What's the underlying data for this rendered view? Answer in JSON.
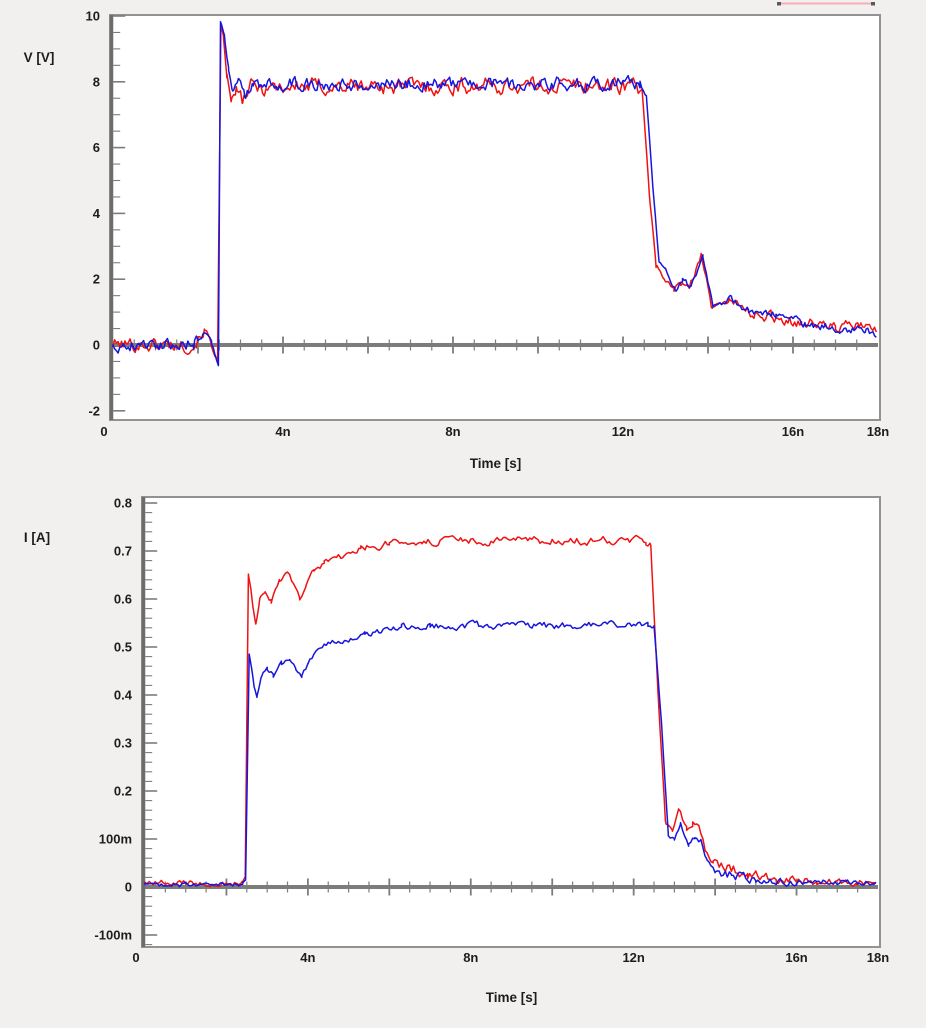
{
  "ui": {
    "background_color": "#f1f0ee",
    "plot_background": "#ffffff",
    "frame_color": "#929292",
    "axis_color": "#6c6c6c",
    "clipped_marker": {
      "color": "#f7aeb4",
      "endpoint_color": "#5a5a5a"
    }
  },
  "chart_data": [
    {
      "type": "line",
      "title": "",
      "xlabel": "Time [s]",
      "ylabel": "V [V]",
      "x_range_ns": [
        0,
        18
      ],
      "ylim": [
        -2,
        10
      ],
      "grid": false,
      "legend": "none",
      "x_ticks": [
        "0",
        "4n",
        "8n",
        "12n",
        "16n",
        "18n"
      ],
      "x_tick_values_ns": [
        0,
        4,
        8,
        12,
        16,
        18
      ],
      "y_ticks": [
        "10",
        "8",
        "6",
        "4",
        "2",
        "0",
        "-2"
      ],
      "y_tick_values": [
        10,
        8,
        6,
        4,
        2,
        0,
        -2
      ],
      "series": [
        {
          "name": "red",
          "color": "#f01212",
          "keypoints_t_v_noise": [
            [
              0,
              0.02,
              0.2
            ],
            [
              1.9,
              0.0,
              0.2
            ],
            [
              2.15,
              0.45,
              0.15
            ],
            [
              2.3,
              0.1,
              0.1
            ],
            [
              2.4,
              -0.3,
              0.05
            ],
            [
              2.46,
              -0.5,
              0.02
            ],
            [
              2.54,
              9.7,
              0.04
            ],
            [
              2.6,
              9.3,
              0.06
            ],
            [
              2.68,
              8.2,
              0.1
            ],
            [
              2.78,
              7.35,
              0.12
            ],
            [
              2.9,
              7.75,
              0.18
            ],
            [
              3.05,
              7.4,
              0.2
            ],
            [
              3.25,
              7.85,
              0.24
            ],
            [
              12.35,
              7.9,
              0.24
            ],
            [
              12.45,
              7.8,
              0.08
            ],
            [
              12.62,
              4.5,
              0.08
            ],
            [
              12.78,
              2.45,
              0.1
            ],
            [
              12.95,
              2.1,
              0.12
            ],
            [
              13.2,
              1.65,
              0.12
            ],
            [
              13.35,
              1.9,
              0.12
            ],
            [
              13.55,
              1.7,
              0.1
            ],
            [
              13.85,
              2.8,
              0.1
            ],
            [
              14.1,
              1.05,
              0.12
            ],
            [
              14.5,
              1.45,
              0.15
            ],
            [
              14.9,
              1.0,
              0.16
            ],
            [
              15.5,
              0.85,
              0.16
            ],
            [
              16.2,
              0.7,
              0.16
            ],
            [
              17.0,
              0.55,
              0.16
            ],
            [
              17.6,
              0.6,
              0.14
            ],
            [
              18,
              0.4,
              0.12
            ]
          ]
        },
        {
          "name": "blue",
          "color": "#1616dc",
          "keypoints_t_v_noise": [
            [
              0,
              0.0,
              0.18
            ],
            [
              1.9,
              0.05,
              0.18
            ],
            [
              2.15,
              0.4,
              0.12
            ],
            [
              2.32,
              0.05,
              0.08
            ],
            [
              2.42,
              -0.35,
              0.04
            ],
            [
              2.48,
              -0.6,
              0.02
            ],
            [
              2.53,
              9.85,
              0.03
            ],
            [
              2.62,
              9.4,
              0.05
            ],
            [
              2.72,
              8.4,
              0.08
            ],
            [
              2.82,
              7.7,
              0.1
            ],
            [
              2.95,
              8.0,
              0.16
            ],
            [
              3.1,
              7.6,
              0.18
            ],
            [
              3.3,
              7.95,
              0.2
            ],
            [
              12.4,
              7.95,
              0.2
            ],
            [
              12.55,
              7.6,
              0.06
            ],
            [
              12.7,
              4.8,
              0.06
            ],
            [
              12.85,
              2.55,
              0.08
            ],
            [
              13.0,
              2.2,
              0.1
            ],
            [
              13.25,
              1.7,
              0.1
            ],
            [
              13.4,
              1.95,
              0.1
            ],
            [
              13.6,
              1.75,
              0.09
            ],
            [
              13.88,
              2.7,
              0.09
            ],
            [
              14.12,
              1.15,
              0.1
            ],
            [
              14.55,
              1.4,
              0.12
            ],
            [
              14.95,
              1.05,
              0.13
            ],
            [
              15.6,
              0.9,
              0.13
            ],
            [
              16.3,
              0.65,
              0.13
            ],
            [
              17.1,
              0.5,
              0.13
            ],
            [
              17.7,
              0.45,
              0.1
            ],
            [
              18,
              0.25,
              0.08
            ]
          ]
        }
      ]
    },
    {
      "type": "line",
      "title": "",
      "xlabel": "Time [s]",
      "ylabel": "I [A]",
      "x_range_ns": [
        0,
        18
      ],
      "ylim": [
        -0.1,
        0.8
      ],
      "grid": false,
      "legend": "none",
      "x_ticks": [
        "0",
        "4n",
        "8n",
        "12n",
        "16n",
        "18n"
      ],
      "x_tick_values_ns": [
        0,
        4,
        8,
        12,
        16,
        18
      ],
      "y_ticks": [
        "0.8",
        "0.7",
        "0.6",
        "0.5",
        "0.4",
        "0.3",
        "0.2",
        "100m",
        "0",
        "-100m"
      ],
      "y_tick_values": [
        0.8,
        0.7,
        0.6,
        0.5,
        0.4,
        0.3,
        0.2,
        0.1,
        0,
        -0.1
      ],
      "series": [
        {
          "name": "red",
          "color": "#f01212",
          "keypoints_t_v_noise": [
            [
              0,
              0.008,
              0.006
            ],
            [
              2.38,
              0.008,
              0.006
            ],
            [
              2.46,
              0.02,
              0.003
            ],
            [
              2.54,
              0.655,
              0.004
            ],
            [
              2.6,
              0.62,
              0.004
            ],
            [
              2.66,
              0.575,
              0.004
            ],
            [
              2.72,
              0.55,
              0.003
            ],
            [
              2.82,
              0.6,
              0.005
            ],
            [
              2.95,
              0.615,
              0.006
            ],
            [
              3.1,
              0.595,
              0.007
            ],
            [
              3.3,
              0.635,
              0.006
            ],
            [
              3.5,
              0.655,
              0.005
            ],
            [
              3.65,
              0.63,
              0.004
            ],
            [
              3.8,
              0.6,
              0.004
            ],
            [
              3.95,
              0.625,
              0.005
            ],
            [
              4.15,
              0.66,
              0.006
            ],
            [
              4.4,
              0.675,
              0.006
            ],
            [
              4.8,
              0.69,
              0.007
            ],
            [
              5.3,
              0.705,
              0.007
            ],
            [
              6.0,
              0.715,
              0.008
            ],
            [
              6.8,
              0.72,
              0.008
            ],
            [
              12.3,
              0.722,
              0.008
            ],
            [
              12.42,
              0.715,
              0.004
            ],
            [
              12.6,
              0.4,
              0.005
            ],
            [
              12.78,
              0.135,
              0.006
            ],
            [
              12.95,
              0.125,
              0.007
            ],
            [
              13.1,
              0.165,
              0.006
            ],
            [
              13.3,
              0.12,
              0.007
            ],
            [
              13.45,
              0.135,
              0.007
            ],
            [
              13.6,
              0.125,
              0.006
            ],
            [
              13.75,
              0.08,
              0.008
            ],
            [
              13.95,
              0.045,
              0.009
            ],
            [
              14.3,
              0.04,
              0.012
            ],
            [
              14.8,
              0.025,
              0.01
            ],
            [
              15.5,
              0.018,
              0.009
            ],
            [
              16.5,
              0.012,
              0.008
            ],
            [
              18,
              0.01,
              0.008
            ]
          ]
        },
        {
          "name": "blue",
          "color": "#1616dc",
          "keypoints_t_v_noise": [
            [
              0,
              0.005,
              0.005
            ],
            [
              2.4,
              0.005,
              0.005
            ],
            [
              2.47,
              0.015,
              0.003
            ],
            [
              2.56,
              0.485,
              0.004
            ],
            [
              2.62,
              0.455,
              0.004
            ],
            [
              2.68,
              0.42,
              0.004
            ],
            [
              2.75,
              0.395,
              0.003
            ],
            [
              2.86,
              0.44,
              0.005
            ],
            [
              3.0,
              0.455,
              0.006
            ],
            [
              3.15,
              0.44,
              0.006
            ],
            [
              3.35,
              0.465,
              0.006
            ],
            [
              3.55,
              0.475,
              0.005
            ],
            [
              3.7,
              0.455,
              0.004
            ],
            [
              3.85,
              0.44,
              0.004
            ],
            [
              4.0,
              0.465,
              0.005
            ],
            [
              4.2,
              0.49,
              0.005
            ],
            [
              4.45,
              0.505,
              0.005
            ],
            [
              4.85,
              0.515,
              0.006
            ],
            [
              5.4,
              0.525,
              0.006
            ],
            [
              6.3,
              0.54,
              0.007
            ],
            [
              7.0,
              0.545,
              0.007
            ],
            [
              12.35,
              0.545,
              0.007
            ],
            [
              12.5,
              0.54,
              0.004
            ],
            [
              12.68,
              0.35,
              0.005
            ],
            [
              12.85,
              0.105,
              0.006
            ],
            [
              13.0,
              0.1,
              0.006
            ],
            [
              13.15,
              0.13,
              0.006
            ],
            [
              13.35,
              0.085,
              0.007
            ],
            [
              13.5,
              0.105,
              0.007
            ],
            [
              13.65,
              0.095,
              0.006
            ],
            [
              13.8,
              0.055,
              0.007
            ],
            [
              14.0,
              0.03,
              0.008
            ],
            [
              14.4,
              0.025,
              0.01
            ],
            [
              15.0,
              0.015,
              0.008
            ],
            [
              16.0,
              0.01,
              0.007
            ],
            [
              18,
              0.008,
              0.006
            ]
          ]
        }
      ]
    }
  ]
}
